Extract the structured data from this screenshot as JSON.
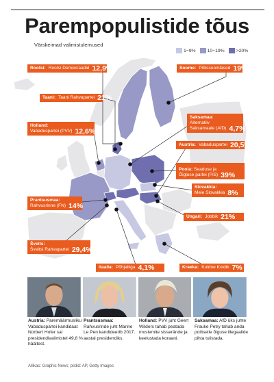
{
  "title": "Parempopulistide tõus",
  "subtitle": "Värskeimad valimistulemused",
  "legend": [
    {
      "label": "1−9%",
      "color": "#c7c8e2"
    },
    {
      "label": "10−19%",
      "color": "#9899c7"
    },
    {
      "label": ">20%",
      "color": "#6f6fb0"
    }
  ],
  "callouts": {
    "rootsi": {
      "country": "Rootsi:",
      "party": "Rootsi Demokraadid",
      "pct": "12,9%"
    },
    "soome": {
      "country": "Soome:",
      "party": "Põlissoomlased",
      "pct": "19%"
    },
    "taani": {
      "country": "Taani:",
      "party": "Taani Rahvapartei",
      "pct": "21%"
    },
    "saksamaa": {
      "country": "Saksamaa:",
      "party_line1": "Alternatiiv",
      "party_line2": "Saksamaale (AfD)",
      "pct": "4,7%"
    },
    "holland": {
      "country": "Holland:",
      "party": "Vabaduspartei (PVV)",
      "pct": "12,6%"
    },
    "austria": {
      "country": "Austria:",
      "party": "Vabaduspartei",
      "pct": "20,5%"
    },
    "poola": {
      "country": "Poola:",
      "party_line1": "Seaduse ja",
      "party_line2": "Õigluse partei (PiS)",
      "pct": "39%"
    },
    "slovakkia": {
      "country": "Slovakkia:",
      "party": "Meie Slovakkia",
      "pct": "8%"
    },
    "prantsusmaa": {
      "country": "Prantsusmaa:",
      "party": "Rahvusrinne (FN)",
      "pct": "14%"
    },
    "ungari": {
      "country": "Ungari:",
      "party": "Jobbik",
      "pct": "21%"
    },
    "sveits": {
      "country": "Šveits:",
      "party": "Šveitsi Rahvapartei",
      "pct": "29,4%"
    },
    "itaalia": {
      "country": "Itaalia:",
      "party": "Põhjaliiga",
      "pct": "4,1%"
    },
    "kreeka": {
      "country": "Kreeka:",
      "party": "Kuldne Koidik",
      "pct": "7%"
    }
  },
  "captions": [
    {
      "bold": "Austria:",
      "text": "Paremäärmusliku Vabaduspartei kandidaat Norbert Hofer sai presidendi­valimistel 49,8 % häältest."
    },
    {
      "bold": "Prantsusmaa:",
      "text": "Rahvusrinde juht Marine Le Pen kandideerib 2017. aastal presidendiks."
    },
    {
      "bold": "Holland:",
      "text": "PVV juht Geert Wilders tahab peatada moslemite sisserände ja keelustada koraani."
    },
    {
      "bold": "Saksamaa:",
      "text": "AfD üks juhte Frauke Petry tahab anda politseile õiguse illegaalide pihta tulistada."
    }
  ],
  "source": "Allikas: Graphic News; pildid: AP, Getty Images"
}
